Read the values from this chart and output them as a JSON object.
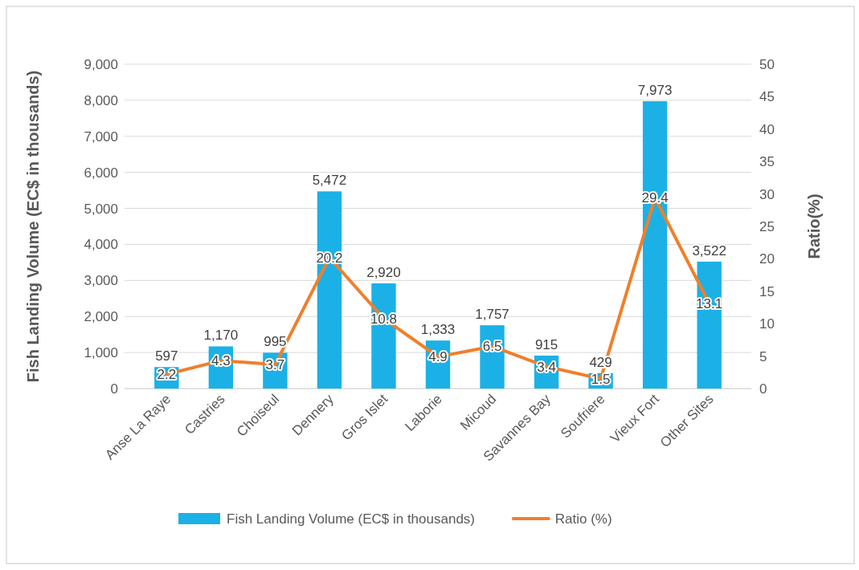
{
  "chart_data": {
    "type": "bar",
    "categories": [
      "Anse La Raye",
      "Castries",
      "Choiseul",
      "Dennery",
      "Gros Islet",
      "Laborie",
      "Micoud",
      "Savannes Bay",
      "Soufriere",
      "Vieux Fort",
      "Other Sites"
    ],
    "series": [
      {
        "name": "Fish Landing Volume (EC$ in thousands)",
        "color": "#1bb1e7",
        "values": [
          597,
          1170,
          995,
          5472,
          2920,
          1333,
          1757,
          915,
          429,
          7973,
          3522
        ],
        "value_labels": [
          "597",
          "1,170",
          "995",
          "5,472",
          "2,920",
          "1,333",
          "1,757",
          "915",
          "429",
          "7,973",
          "3,522"
        ]
      },
      {
        "name": "Ratio (%)",
        "type": "line",
        "axis": "y2",
        "color": "#f07f2a",
        "values": [
          2.2,
          4.3,
          3.7,
          20.2,
          10.8,
          4.9,
          6.5,
          3.4,
          1.5,
          29.4,
          13.1
        ]
      }
    ],
    "ylabel": "Fish Landing Volume (EC$ in thousands)",
    "y2label": "Ratio(%)",
    "ylim": [
      0,
      9000
    ],
    "yticks": [
      {
        "value": 0,
        "label": "0"
      },
      {
        "value": 1000,
        "label": "1,000"
      },
      {
        "value": 2000,
        "label": "2,000"
      },
      {
        "value": 3000,
        "label": "3,000"
      },
      {
        "value": 4000,
        "label": "4,000"
      },
      {
        "value": 5000,
        "label": "5,000"
      },
      {
        "value": 6000,
        "label": "6,000"
      },
      {
        "value": 7000,
        "label": "7,000"
      },
      {
        "value": 8000,
        "label": "8,000"
      },
      {
        "value": 9000,
        "label": "9,000"
      }
    ],
    "y2lim": [
      0,
      50
    ],
    "y2ticks": [
      0,
      5,
      10,
      15,
      20,
      25,
      30,
      35,
      40,
      45,
      50
    ],
    "grid": "y",
    "legend": "bottom",
    "data_labels": true,
    "line_style": "solid",
    "marker": "none"
  }
}
